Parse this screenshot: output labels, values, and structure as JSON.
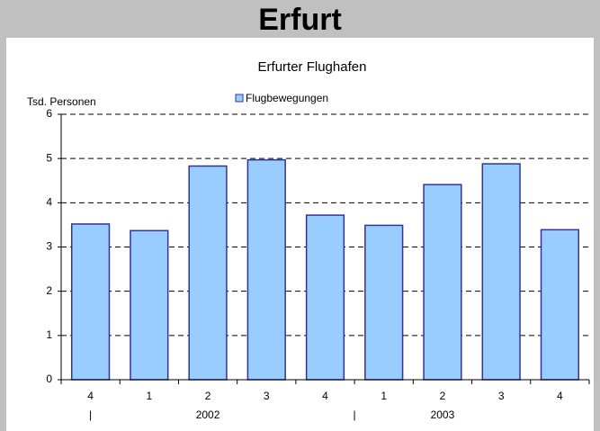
{
  "header": {
    "title": "Erfurt"
  },
  "chart_data": {
    "type": "bar",
    "title": "Erfurter Flughafen",
    "y_label": "Tsd. Personen",
    "categories": [
      "4",
      "1",
      "2",
      "3",
      "4",
      "1",
      "2",
      "3",
      "4"
    ],
    "group_labels": [
      "|",
      "2002",
      "|",
      "2003"
    ],
    "series": [
      {
        "name": "Flugbewegungen",
        "color": "#99ccff",
        "values": [
          3.52,
          3.37,
          4.83,
          4.97,
          3.72,
          3.49,
          4.41,
          4.88,
          3.39
        ]
      }
    ],
    "ylim": [
      0,
      6
    ],
    "yticks": [
      0,
      1,
      2,
      3,
      4,
      5,
      6
    ],
    "grid": true
  }
}
